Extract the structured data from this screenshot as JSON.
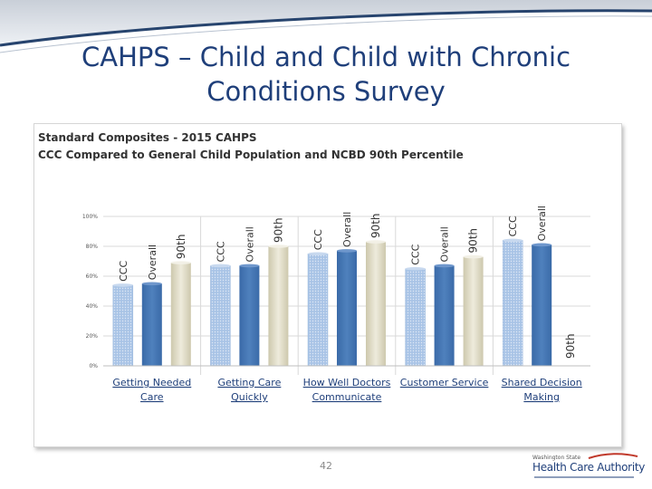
{
  "slide": {
    "title": "CAHPS – Child and Child with Chronic Conditions Survey",
    "page_number": "42",
    "logo": {
      "line1": "Washington State",
      "line2": "Health Care Authority"
    }
  },
  "colors": {
    "title": "#1f3f7a",
    "header_band": "#27446e",
    "ccc_bar": "#a9c4e6",
    "overall_bar": "#4f81bd",
    "p90_bar": "#ddd9c3",
    "category_label": "#1f3f7a"
  },
  "chart_data": {
    "type": "bar",
    "title": "Standard Composites - 2015 CAHPS",
    "subtitle": "CCC Compared to General Child Population and NCBD 90th Percentile",
    "categories": [
      "Getting Needed Care",
      "Getting Care Quickly",
      "How Well Doctors Communicate",
      "Customer Service",
      "Shared Decision Making"
    ],
    "series": [
      {
        "name": "CCC",
        "values": [
          0.54,
          0.67,
          0.75,
          0.65,
          0.84
        ]
      },
      {
        "name": "Overall",
        "values": [
          0.55,
          0.67,
          0.77,
          0.67,
          0.81
        ]
      },
      {
        "name": "90th",
        "values": [
          0.69,
          0.8,
          0.83,
          0.73,
          null
        ]
      }
    ],
    "bar_labels": [
      "CCC",
      "Overall",
      "90th"
    ],
    "yticks": [
      "0%",
      "20%",
      "40%",
      "60%",
      "80%",
      "100%"
    ],
    "ylim": [
      0,
      1
    ],
    "grid": true,
    "legend": "none"
  }
}
